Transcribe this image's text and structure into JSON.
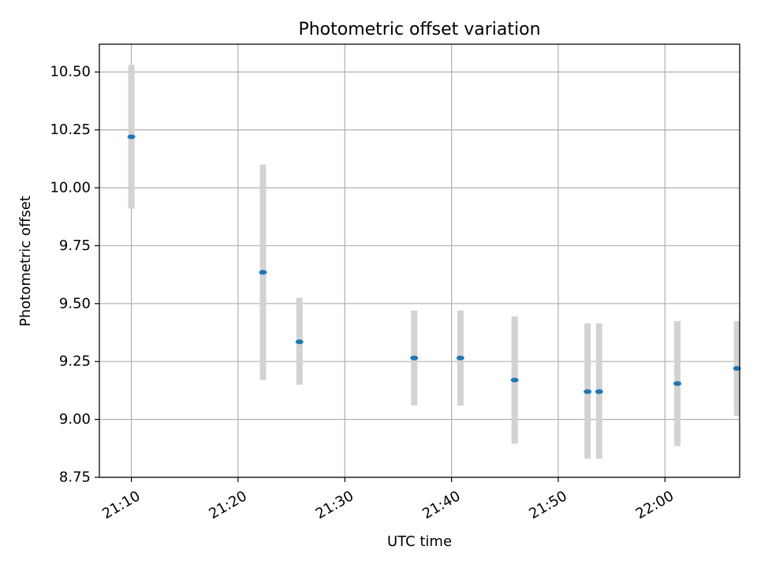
{
  "chart_data": {
    "type": "scatter",
    "title": "Photometric offset variation",
    "xlabel": "UTC time",
    "ylabel": "Photometric offset",
    "x_type": "time",
    "xlim": [
      "21:07",
      "22:07"
    ],
    "ylim": [
      8.75,
      10.62
    ],
    "x_ticks": [
      "21:10",
      "21:20",
      "21:30",
      "21:40",
      "21:50",
      "22:00"
    ],
    "y_ticks": [
      "8.75",
      "9.00",
      "9.25",
      "9.50",
      "9.75",
      "10.00",
      "10.25",
      "10.50"
    ],
    "grid": true,
    "series": [
      {
        "points": [
          {
            "x": "21:10:00",
            "y": 10.22,
            "yerr_low": 9.91,
            "yerr_high": 10.53
          },
          {
            "x": "21:22:20",
            "y": 9.635,
            "yerr_low": 9.17,
            "yerr_high": 10.1
          },
          {
            "x": "21:25:45",
            "y": 9.335,
            "yerr_low": 9.15,
            "yerr_high": 9.525
          },
          {
            "x": "21:36:30",
            "y": 9.265,
            "yerr_low": 9.06,
            "yerr_high": 9.47
          },
          {
            "x": "21:40:50",
            "y": 9.265,
            "yerr_low": 9.06,
            "yerr_high": 9.47
          },
          {
            "x": "21:45:55",
            "y": 9.17,
            "yerr_low": 8.895,
            "yerr_high": 9.445
          },
          {
            "x": "21:52:45",
            "y": 9.12,
            "yerr_low": 8.83,
            "yerr_high": 9.415
          },
          {
            "x": "21:53:50",
            "y": 9.12,
            "yerr_low": 8.83,
            "yerr_high": 9.415
          },
          {
            "x": "22:01:10",
            "y": 9.155,
            "yerr_low": 8.885,
            "yerr_high": 9.425
          },
          {
            "x": "22:06:45",
            "y": 9.22,
            "yerr_low": 9.015,
            "yerr_high": 9.425
          }
        ]
      }
    ],
    "colors": {
      "point": "#1f77b4",
      "errorbar": "#d3d3d3",
      "grid": "#b0b0b0",
      "axes": "#000000"
    }
  }
}
